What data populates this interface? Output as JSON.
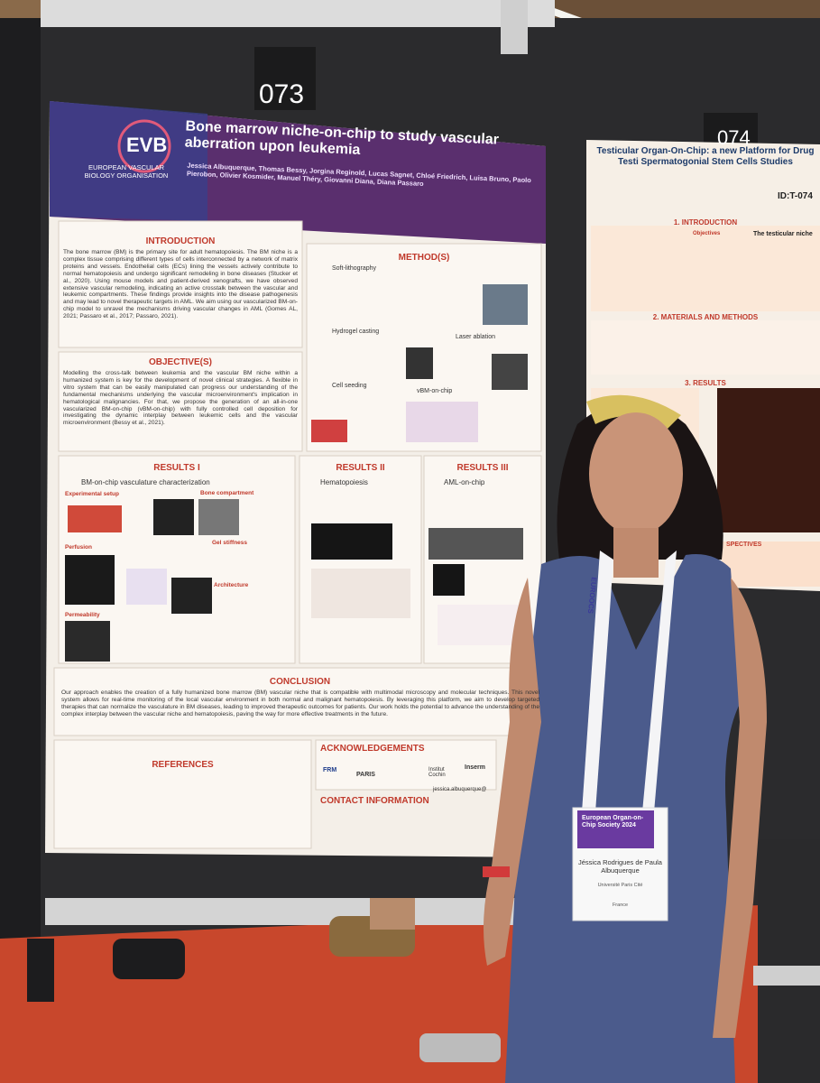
{
  "posters": [
    {
      "number": "073",
      "logo": "EVB",
      "organisation": "EUROPEAN VASCULAR BIOLOGY ORGANISATION",
      "title": "Bone marrow niche-on-chip to study vascular aberration upon leukemia",
      "authors": "Jessica Albuquerque, Thomas Bessy, Jorgina Reginold, Lucas Sagnet, Chloé Friedrich, Luisa Bruno, Paolo Pierobon, Olivier Kosmider, Manuel Théry, Giovanni Diana, Diana Passaro",
      "introduction": {
        "heading": "INTRODUCTION",
        "text": "The bone marrow (BM) is the primary site for adult hematopoiesis. The BM niche is a complex tissue comprising different types of cells interconnected by a network of matrix proteins and vessels. Endothelial cells (ECs) lining the vessels actively contribute to normal hematopoiesis and undergo significant remodeling in bone diseases (Stucker et al., 2020). Using mouse models and patient-derived xenografts, we have observed extensive vascular remodeling, indicating an active crosstalk between the vascular and leukemic compartments. These findings provide insights into the disease pathogenesis and may lead to novel therapeutic targets in AML. We aim using our vascularized BM-on-chip model to unravel the mechanisms driving vascular changes in AML (Gomes AL, 2021; Passaro et al., 2017; Passaro, 2021)."
      },
      "objective": {
        "heading": "OBJECTIVE(S)",
        "text": "Modelling the cross-talk between leukemia and the vascular BM niche within a humanized system is key for the development of novel clinical strategies. A flexible in vitro system that can be easily manipulated can progress our understanding of the fundamental mechanisms underlying the vascular microenvironment's implication in hematological malignancies. For that, we propose the generation of an all-in-one vascularized BM-on-chip (vBM-on-chip) with fully controlled cell deposition for investigating the dynamic interplay between leukemic cells and the vascular microenvironment (Bessy et al., 2021)."
      },
      "methods": {
        "heading": "METHOD(S)",
        "steps": [
          "Soft-lithography",
          "Hydrogel casting",
          "Laser ablation",
          "Cell seeding",
          "vBM-on-chip"
        ]
      },
      "results": [
        {
          "heading": "RESULTS I",
          "subtitle": "BM-on-chip vasculature characterization",
          "labels": [
            "Experimental setup",
            "Bone compartment",
            "Perfusion",
            "Gel stiffness",
            "Architecture",
            "Permeability"
          ]
        },
        {
          "heading": "RESULTS II",
          "subtitle": "Hematopoiesis",
          "labels": []
        },
        {
          "heading": "RESULTS III",
          "subtitle": "AML-on-chip",
          "labels": []
        }
      ],
      "conclusion": {
        "heading": "CONCLUSION",
        "text": "Our approach enables the creation of a fully humanized bone marrow (BM) vascular niche that is compatible with multimodal microscopy and molecular techniques. This novel system allows for real-time monitoring of the local vascular environment in both normal and malignant hematopoiesis. By leveraging this platform, we aim to develop targeted therapies that can normalize the vasculature in BM diseases, leading to improved therapeutic outcomes for patients. Our work holds the potential to advance the understanding of the complex interplay between the vascular niche and hematopoiesis, paving the way for more effective treatments in the future."
      },
      "references": {
        "heading": "REFERENCES"
      },
      "acknowledgements": {
        "heading": "ACKNOWLEDGEMENTS",
        "logos": [
          "FRM",
          "PARIS",
          "Institut Cochin",
          "Inserm"
        ]
      },
      "contact": {
        "heading": "CONTACT INFORMATION",
        "email": "jessica.albuquerque@"
      }
    },
    {
      "number": "074",
      "title": "Testicular Organ-On-Chip: a new Platform for Drug Testi Spermatogonial Stem Cells Studies",
      "id": "ID:T-074",
      "sections": [
        "1. INTRODUCTION",
        "2. MATERIALS AND METHODS",
        "3. RESULTS",
        "SPECTIVES"
      ],
      "labels": [
        "The testicular niche",
        "Objectives"
      ]
    }
  ],
  "badge": {
    "lanyard": "EUROOCS",
    "event": "European Organ-on-Chip Society 2024",
    "name": "Jéssica Rodrigues de Paula Albuquerque",
    "affiliation": "Université Paris Cité",
    "country": "France"
  }
}
